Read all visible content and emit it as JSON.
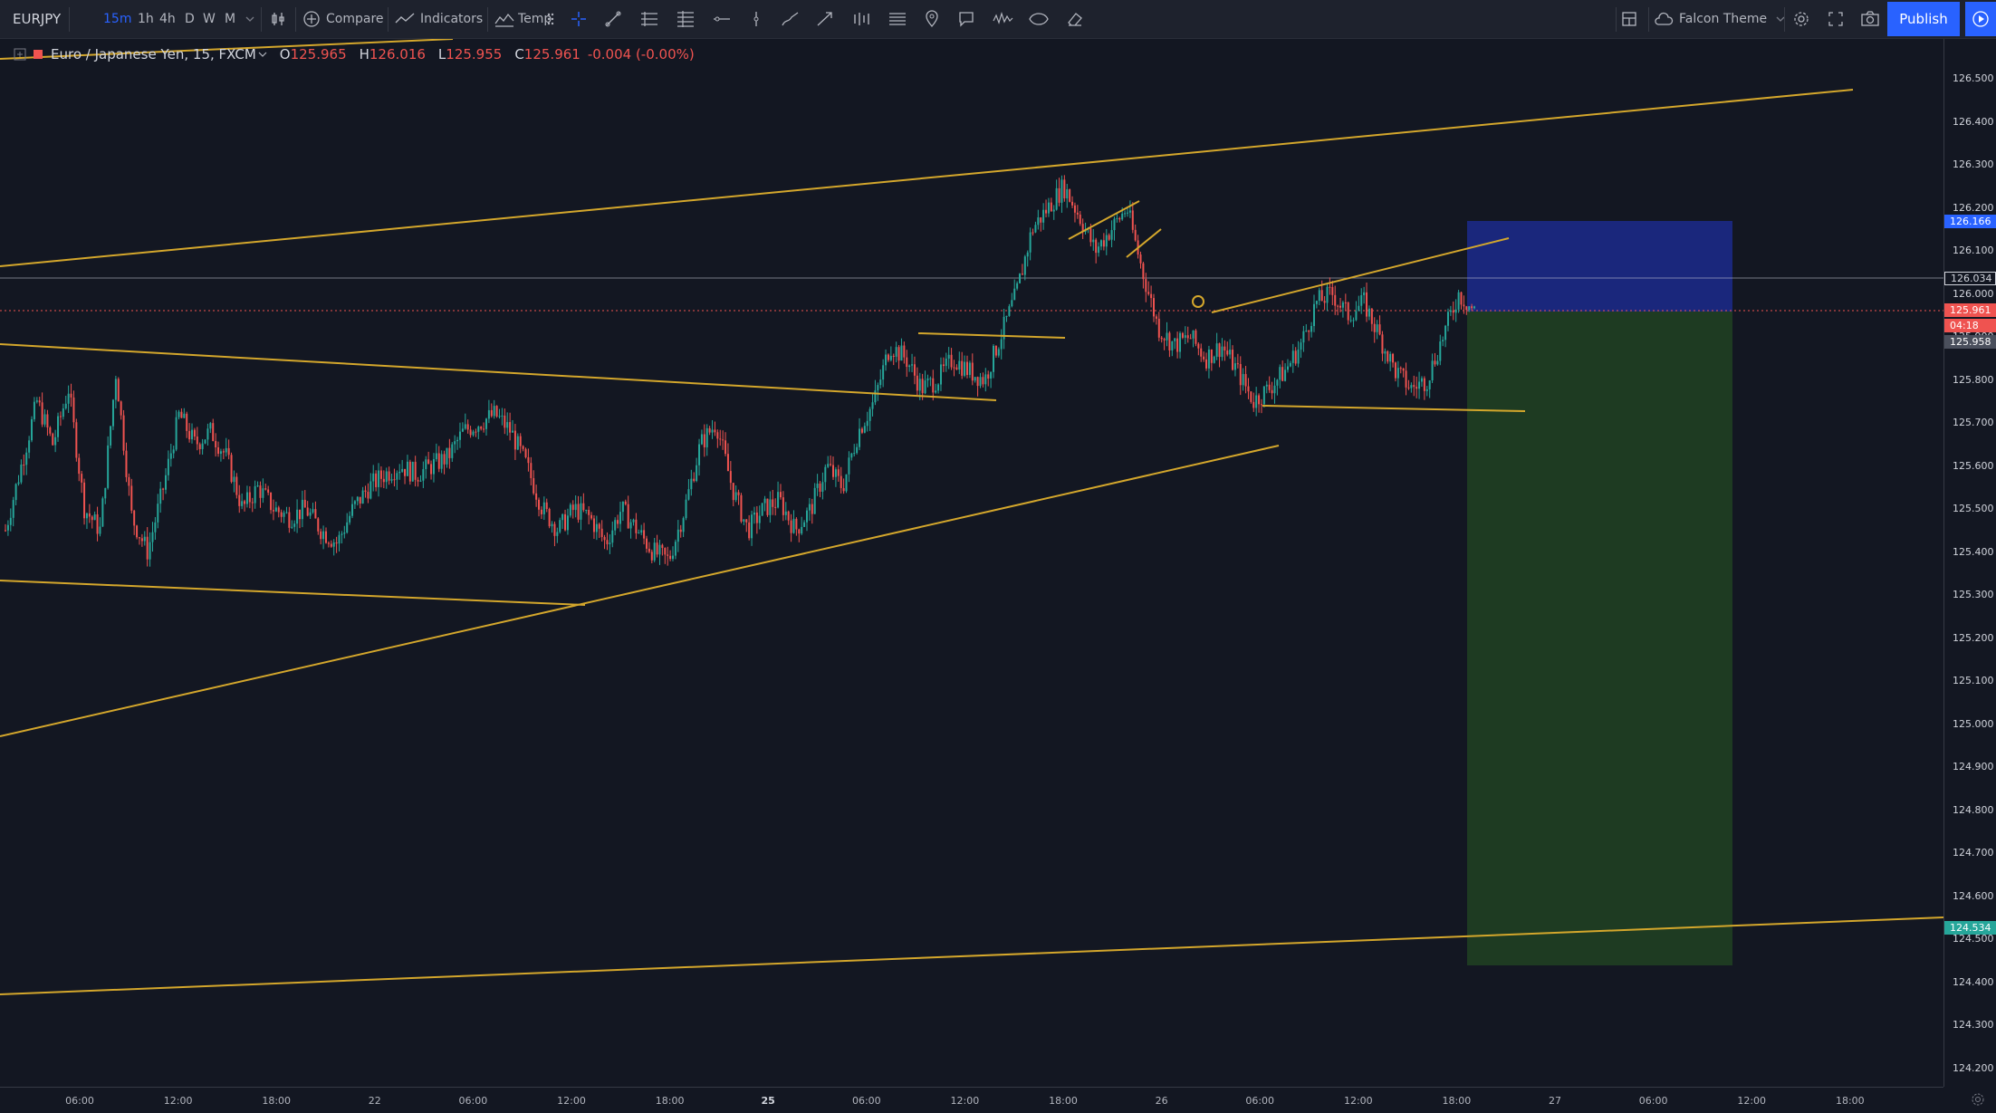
{
  "toolbar": {
    "symbol": "EURJPY",
    "timeframes": [
      {
        "label": "15m",
        "active": true
      },
      {
        "label": "1h",
        "active": false
      },
      {
        "label": "4h",
        "active": false
      },
      {
        "label": "D",
        "active": false
      },
      {
        "label": "W",
        "active": false
      },
      {
        "label": "M",
        "active": false
      }
    ],
    "compare_label": "Compare",
    "indicators_label": "Indicators",
    "templates_label": "Temp",
    "theme_label": "Falcon Theme",
    "publish_label": "Publish"
  },
  "legend": {
    "name": "Euro / Japanese Yen, 15, FXCM",
    "open_key": "O",
    "open": "125.965",
    "high_key": "H",
    "high": "126.016",
    "low_key": "L",
    "low": "125.955",
    "close_key": "C",
    "close": "125.961",
    "change": "-0.004 (-0.00%)"
  },
  "price_axis": {
    "labels": [
      "126.500",
      "126.400",
      "126.300",
      "126.200",
      "126.100",
      "126.000",
      "125.900",
      "125.800",
      "125.700",
      "125.600",
      "125.500",
      "125.400",
      "125.300",
      "125.200",
      "125.100",
      "125.000",
      "124.900",
      "124.800",
      "124.700",
      "124.600",
      "124.500",
      "124.400",
      "124.300",
      "124.200"
    ],
    "tags": {
      "target": "126.166",
      "level": "126.034",
      "last": "125.961",
      "countdown": "04:18",
      "prev": "125.958",
      "stop": "124.534"
    }
  },
  "time_axis": {
    "labels": [
      {
        "text": "06:00",
        "bold": false
      },
      {
        "text": "12:00",
        "bold": false
      },
      {
        "text": "18:00",
        "bold": false
      },
      {
        "text": "22",
        "bold": false
      },
      {
        "text": "06:00",
        "bold": false
      },
      {
        "text": "12:00",
        "bold": false
      },
      {
        "text": "18:00",
        "bold": false
      },
      {
        "text": "25",
        "bold": true
      },
      {
        "text": "06:00",
        "bold": false
      },
      {
        "text": "12:00",
        "bold": false
      },
      {
        "text": "18:00",
        "bold": false
      },
      {
        "text": "26",
        "bold": false
      },
      {
        "text": "06:00",
        "bold": false
      },
      {
        "text": "12:00",
        "bold": false
      },
      {
        "text": "18:00",
        "bold": false
      },
      {
        "text": "27",
        "bold": false
      },
      {
        "text": "06:00",
        "bold": false
      },
      {
        "text": "12:00",
        "bold": false
      },
      {
        "text": "18:00",
        "bold": false
      }
    ]
  },
  "chart_data": {
    "type": "candlestick",
    "symbol": "EURJPY",
    "interval": "15",
    "ylim": [
      124.2,
      126.5
    ],
    "close_path": [
      [
        0,
        125.45
      ],
      [
        1,
        125.6
      ],
      [
        2,
        125.75
      ],
      [
        3,
        125.65
      ],
      [
        4,
        125.78
      ],
      [
        5,
        125.5
      ],
      [
        6,
        125.45
      ],
      [
        7,
        125.82
      ],
      [
        8,
        125.48
      ],
      [
        9,
        125.4
      ],
      [
        10,
        125.55
      ],
      [
        11,
        125.72
      ],
      [
        12,
        125.65
      ],
      [
        13,
        125.68
      ],
      [
        14,
        125.62
      ],
      [
        15,
        125.5
      ],
      [
        16,
        125.55
      ],
      [
        17,
        125.5
      ],
      [
        18,
        125.48
      ],
      [
        19,
        125.5
      ],
      [
        20,
        125.45
      ],
      [
        21,
        125.42
      ],
      [
        22,
        125.5
      ],
      [
        23,
        125.55
      ],
      [
        24,
        125.58
      ],
      [
        25,
        125.6
      ],
      [
        26,
        125.58
      ],
      [
        27,
        125.6
      ],
      [
        28,
        125.62
      ],
      [
        29,
        125.68
      ],
      [
        30,
        125.7
      ],
      [
        31,
        125.72
      ],
      [
        32,
        125.68
      ],
      [
        33,
        125.6
      ],
      [
        34,
        125.5
      ],
      [
        35,
        125.45
      ],
      [
        36,
        125.5
      ],
      [
        37,
        125.48
      ],
      [
        38,
        125.42
      ],
      [
        39,
        125.5
      ],
      [
        40,
        125.45
      ],
      [
        41,
        125.4
      ],
      [
        42,
        125.38
      ],
      [
        43,
        125.5
      ],
      [
        44,
        125.65
      ],
      [
        45,
        125.7
      ],
      [
        46,
        125.55
      ],
      [
        47,
        125.45
      ],
      [
        48,
        125.5
      ],
      [
        49,
        125.52
      ],
      [
        50,
        125.45
      ],
      [
        51,
        125.5
      ],
      [
        52,
        125.6
      ],
      [
        53,
        125.55
      ],
      [
        54,
        125.68
      ],
      [
        55,
        125.75
      ],
      [
        56,
        125.88
      ],
      [
        57,
        125.85
      ],
      [
        58,
        125.78
      ],
      [
        59,
        125.8
      ],
      [
        60,
        125.85
      ],
      [
        61,
        125.82
      ],
      [
        62,
        125.8
      ],
      [
        63,
        125.9
      ],
      [
        64,
        126.0
      ],
      [
        65,
        126.15
      ],
      [
        66,
        126.2
      ],
      [
        67,
        126.25
      ],
      [
        68,
        126.18
      ],
      [
        69,
        126.1
      ],
      [
        70,
        126.15
      ],
      [
        71,
        126.2
      ],
      [
        72,
        126.05
      ],
      [
        73,
        125.92
      ],
      [
        74,
        125.88
      ],
      [
        75,
        125.9
      ],
      [
        76,
        125.85
      ],
      [
        77,
        125.88
      ],
      [
        78,
        125.82
      ],
      [
        79,
        125.75
      ],
      [
        80,
        125.78
      ],
      [
        81,
        125.82
      ],
      [
        82,
        125.88
      ],
      [
        83,
        125.98
      ],
      [
        84,
        126.0
      ],
      [
        85,
        125.95
      ],
      [
        86,
        125.98
      ],
      [
        87,
        125.9
      ],
      [
        88,
        125.82
      ],
      [
        89,
        125.78
      ],
      [
        90,
        125.8
      ],
      [
        91,
        125.9
      ],
      [
        92,
        126.0
      ],
      [
        93,
        125.96
      ]
    ],
    "position": {
      "entry": 125.961,
      "target": 126.166,
      "stop": 124.534
    }
  }
}
